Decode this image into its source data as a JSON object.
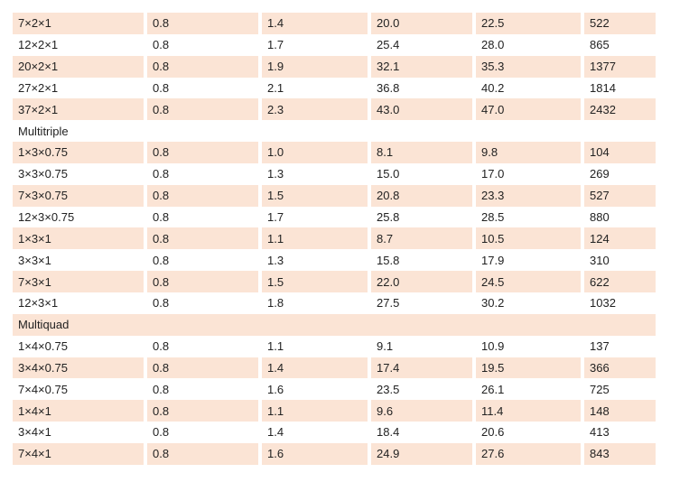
{
  "table": {
    "rows": [
      [
        "7×2×1",
        "0.8",
        "1.4",
        "20.0",
        "22.5",
        "522"
      ],
      [
        "12×2×1",
        "0.8",
        "1.7",
        "25.4",
        "28.0",
        "865"
      ],
      [
        "20×2×1",
        "0.8",
        "1.9",
        "32.1",
        "35.3",
        "1377"
      ],
      [
        "27×2×1",
        "0.8",
        "2.1",
        "36.8",
        "40.2",
        "1814"
      ],
      [
        "37×2×1",
        "0.8",
        "2.3",
        "43.0",
        "47.0",
        "2432"
      ],
      [
        "Multitriple"
      ],
      [
        "1×3×0.75",
        "0.8",
        "1.0",
        "8.1",
        "9.8",
        "104"
      ],
      [
        "3×3×0.75",
        "0.8",
        "1.3",
        "15.0",
        "17.0",
        "269"
      ],
      [
        "7×3×0.75",
        "0.8",
        "1.5",
        "20.8",
        "23.3",
        "527"
      ],
      [
        "12×3×0.75",
        "0.8",
        "1.7",
        "25.8",
        "28.5",
        "880"
      ],
      [
        "1×3×1",
        "0.8",
        "1.1",
        "8.7",
        "10.5",
        "124"
      ],
      [
        "3×3×1",
        "0.8",
        "1.3",
        "15.8",
        "17.9",
        "310"
      ],
      [
        "7×3×1",
        "0.8",
        "1.5",
        "22.0",
        "24.5",
        "622"
      ],
      [
        "12×3×1",
        "0.8",
        "1.8",
        "27.5",
        "30.2",
        "1032"
      ],
      [
        "Multiquad"
      ],
      [
        "1×4×0.75",
        "0.8",
        "1.1",
        "9.1",
        "10.9",
        "137"
      ],
      [
        "3×4×0.75",
        "0.8",
        "1.4",
        "17.4",
        "19.5",
        "366"
      ],
      [
        "7×4×0.75",
        "0.8",
        "1.6",
        "23.5",
        "26.1",
        "725"
      ],
      [
        "1×4×1",
        "0.8",
        "1.1",
        "9.6",
        "11.4",
        "148"
      ],
      [
        "3×4×1",
        "0.8",
        "1.4",
        "18.4",
        "20.6",
        "413"
      ],
      [
        "7×4×1",
        "0.8",
        "1.6",
        "24.9",
        "27.6",
        "843"
      ]
    ]
  }
}
